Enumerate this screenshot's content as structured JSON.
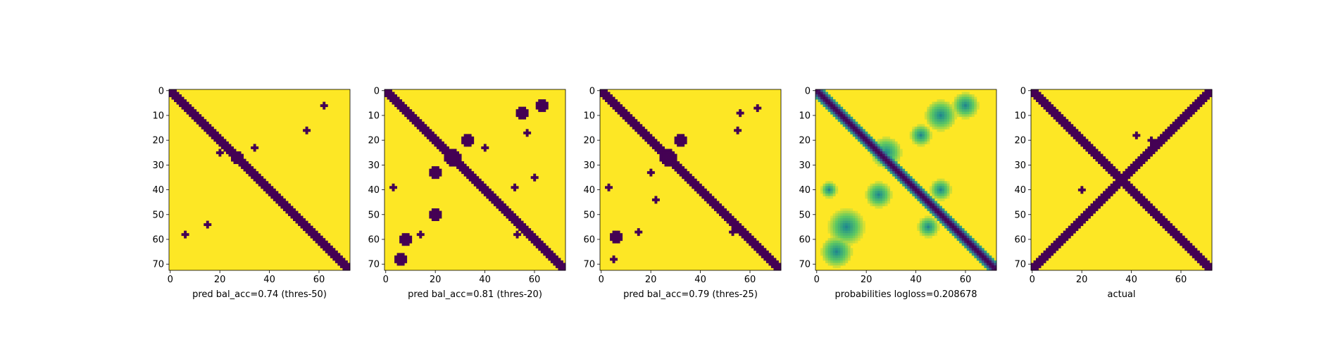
{
  "colors": {
    "low": "#440154",
    "high": "#fde725"
  },
  "chart_data": [
    {
      "type": "heatmap",
      "name": "pred-threshold-50",
      "xlabel": "pred bal_acc=0.74 (thres-50)",
      "xticks": [
        0,
        20,
        40,
        60
      ],
      "yticks": [
        0,
        10,
        20,
        30,
        40,
        50,
        60,
        70
      ],
      "xlim": [
        0,
        73
      ],
      "ylim": [
        73,
        0
      ],
      "size": 73,
      "mode": "binary",
      "diagonal": {
        "start_row": 0,
        "end_row": 72,
        "band_width": 2
      },
      "blobs": [
        {
          "x": 27,
          "y": 27,
          "r": 2
        },
        {
          "x": 20,
          "y": 25,
          "r": 1
        },
        {
          "x": 34,
          "y": 23,
          "r": 1
        },
        {
          "x": 62,
          "y": 6,
          "r": 1
        },
        {
          "x": 55,
          "y": 16,
          "r": 1
        },
        {
          "x": 15,
          "y": 54,
          "r": 1
        },
        {
          "x": 6,
          "y": 58,
          "r": 1
        }
      ]
    },
    {
      "type": "heatmap",
      "name": "pred-threshold-20",
      "xlabel": "pred bal_acc=0.81 (thres-20)",
      "xticks": [
        0,
        20,
        40,
        60
      ],
      "yticks": [
        0,
        10,
        20,
        30,
        40,
        50,
        60,
        70
      ],
      "xlim": [
        0,
        73
      ],
      "ylim": [
        73,
        0
      ],
      "size": 73,
      "mode": "binary",
      "diagonal": {
        "start_row": 0,
        "end_row": 72,
        "band_width": 2
      },
      "blobs": [
        {
          "x": 27,
          "y": 27,
          "r": 3
        },
        {
          "x": 33,
          "y": 20,
          "r": 2
        },
        {
          "x": 20,
          "y": 33,
          "r": 2
        },
        {
          "x": 55,
          "y": 9,
          "r": 2
        },
        {
          "x": 63,
          "y": 6,
          "r": 2
        },
        {
          "x": 57,
          "y": 17,
          "r": 1
        },
        {
          "x": 40,
          "y": 23,
          "r": 1
        },
        {
          "x": 20,
          "y": 50,
          "r": 2
        },
        {
          "x": 8,
          "y": 60,
          "r": 2
        },
        {
          "x": 14,
          "y": 58,
          "r": 1
        },
        {
          "x": 6,
          "y": 68,
          "r": 2
        },
        {
          "x": 53,
          "y": 58,
          "r": 1
        },
        {
          "x": 3,
          "y": 39,
          "r": 1
        },
        {
          "x": 60,
          "y": 35,
          "r": 1
        },
        {
          "x": 52,
          "y": 39,
          "r": 1
        }
      ]
    },
    {
      "type": "heatmap",
      "name": "pred-threshold-25",
      "xlabel": "pred bal_acc=0.79 (thres-25)",
      "xticks": [
        0,
        20,
        40,
        60
      ],
      "yticks": [
        0,
        10,
        20,
        30,
        40,
        50,
        60,
        70
      ],
      "xlim": [
        0,
        73
      ],
      "ylim": [
        73,
        0
      ],
      "size": 73,
      "mode": "binary",
      "diagonal": {
        "start_row": 0,
        "end_row": 72,
        "band_width": 2
      },
      "blobs": [
        {
          "x": 27,
          "y": 27,
          "r": 3
        },
        {
          "x": 32,
          "y": 20,
          "r": 2
        },
        {
          "x": 20,
          "y": 33,
          "r": 1
        },
        {
          "x": 56,
          "y": 9,
          "r": 1
        },
        {
          "x": 63,
          "y": 7,
          "r": 1
        },
        {
          "x": 55,
          "y": 16,
          "r": 1
        },
        {
          "x": 22,
          "y": 44,
          "r": 1
        },
        {
          "x": 6,
          "y": 59,
          "r": 2
        },
        {
          "x": 15,
          "y": 57,
          "r": 1
        },
        {
          "x": 5,
          "y": 68,
          "r": 1
        },
        {
          "x": 53,
          "y": 57,
          "r": 1
        },
        {
          "x": 3,
          "y": 39,
          "r": 1
        }
      ]
    },
    {
      "type": "heatmap",
      "name": "probabilities",
      "xlabel": "probabilities logloss=0.208678",
      "xticks": [
        0,
        20,
        40,
        60
      ],
      "yticks": [
        0,
        10,
        20,
        30,
        40,
        50,
        60,
        70
      ],
      "xlim": [
        0,
        73
      ],
      "ylim": [
        73,
        0
      ],
      "size": 73,
      "mode": "continuous",
      "diagonal": {
        "start_row": 0,
        "end_row": 72,
        "band_width": 3
      },
      "blobs": [
        {
          "x": 28,
          "y": 25,
          "r": 6
        },
        {
          "x": 50,
          "y": 10,
          "r": 6
        },
        {
          "x": 60,
          "y": 6,
          "r": 5
        },
        {
          "x": 42,
          "y": 18,
          "r": 4
        },
        {
          "x": 12,
          "y": 55,
          "r": 7
        },
        {
          "x": 8,
          "y": 65,
          "r": 6
        },
        {
          "x": 25,
          "y": 42,
          "r": 5
        },
        {
          "x": 50,
          "y": 40,
          "r": 4
        },
        {
          "x": 45,
          "y": 55,
          "r": 4
        },
        {
          "x": 5,
          "y": 40,
          "r": 3
        }
      ]
    },
    {
      "type": "heatmap",
      "name": "actual",
      "xlabel": "actual",
      "xticks": [
        0,
        20,
        40,
        60
      ],
      "yticks": [
        0,
        10,
        20,
        30,
        40,
        50,
        60,
        70
      ],
      "xlim": [
        0,
        73
      ],
      "ylim": [
        73,
        0
      ],
      "size": 73,
      "mode": "binary",
      "diagonal": {
        "start_row": 0,
        "end_row": 72,
        "band_width": 2
      },
      "antidiagonal": {
        "start_row": 0,
        "end_row": 72,
        "band_width": 2
      },
      "blobs": [
        {
          "x": 42,
          "y": 18,
          "r": 1
        },
        {
          "x": 20,
          "y": 40,
          "r": 1
        },
        {
          "x": 64,
          "y": 7,
          "r": 1
        },
        {
          "x": 48,
          "y": 20,
          "r": 1
        }
      ]
    }
  ]
}
